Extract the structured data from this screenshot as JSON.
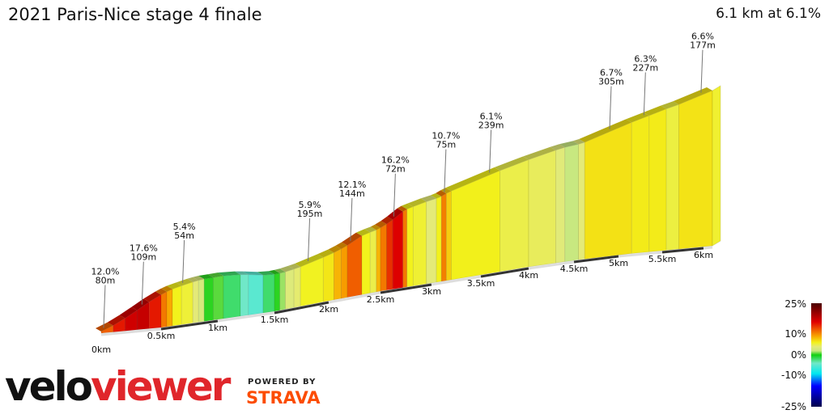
{
  "title": "2021 Paris-Nice stage 4 finale",
  "summary": "6.1 km at 6.1%",
  "chart_data": {
    "type": "area",
    "title": "2021 Paris-Nice stage 4 finale",
    "xlabel": "",
    "ylabel": "",
    "x_unit": "km",
    "xlim": [
      0,
      6.1
    ],
    "x_ticks": [
      "0km",
      "0.5km",
      "1km",
      "1.5km",
      "2km",
      "2.5km",
      "3km",
      "3.5km",
      "4km",
      "4.5km",
      "5km",
      "5.5km",
      "6km"
    ],
    "segments": [
      {
        "from": 0,
        "to": 0.1,
        "grade": 12
      },
      {
        "from": 0.1,
        "to": 0.2,
        "grade": 15
      },
      {
        "from": 0.2,
        "to": 0.3,
        "grade": 17
      },
      {
        "from": 0.3,
        "to": 0.4,
        "grade": 17.6
      },
      {
        "from": 0.4,
        "to": 0.5,
        "grade": 15
      },
      {
        "from": 0.5,
        "to": 0.55,
        "grade": 11
      },
      {
        "from": 0.55,
        "to": 0.6,
        "grade": 9
      },
      {
        "from": 0.6,
        "to": 0.68,
        "grade": 6
      },
      {
        "from": 0.68,
        "to": 0.78,
        "grade": 5.4
      },
      {
        "from": 0.78,
        "to": 0.83,
        "grade": 4
      },
      {
        "from": 0.83,
        "to": 0.88,
        "grade": 3
      },
      {
        "from": 0.88,
        "to": 0.96,
        "grade": 0.3
      },
      {
        "from": 0.96,
        "to": 1.05,
        "grade": 0.8
      },
      {
        "from": 1.05,
        "to": 1.2,
        "grade": -2
      },
      {
        "from": 1.2,
        "to": 1.27,
        "grade": -4
      },
      {
        "from": 1.27,
        "to": 1.4,
        "grade": -5
      },
      {
        "from": 1.4,
        "to": 1.5,
        "grade": -2
      },
      {
        "from": 1.5,
        "to": 1.55,
        "grade": 0.3
      },
      {
        "from": 1.55,
        "to": 1.6,
        "grade": 1.5
      },
      {
        "from": 1.6,
        "to": 1.68,
        "grade": 3.5
      },
      {
        "from": 1.68,
        "to": 1.74,
        "grade": 4.2
      },
      {
        "from": 1.74,
        "to": 1.95,
        "grade": 5.9
      },
      {
        "from": 1.95,
        "to": 2.05,
        "grade": 6.5
      },
      {
        "from": 2.05,
        "to": 2.12,
        "grade": 8.5
      },
      {
        "from": 2.12,
        "to": 2.18,
        "grade": 9.5
      },
      {
        "from": 2.18,
        "to": 2.32,
        "grade": 12.1
      },
      {
        "from": 2.32,
        "to": 2.4,
        "grade": 6
      },
      {
        "from": 2.4,
        "to": 2.46,
        "grade": 5
      },
      {
        "from": 2.46,
        "to": 2.5,
        "grade": 8.5
      },
      {
        "from": 2.5,
        "to": 2.56,
        "grade": 11
      },
      {
        "from": 2.56,
        "to": 2.62,
        "grade": 14
      },
      {
        "from": 2.62,
        "to": 2.72,
        "grade": 16.2
      },
      {
        "from": 2.72,
        "to": 2.76,
        "grade": 11
      },
      {
        "from": 2.76,
        "to": 2.82,
        "grade": 6
      },
      {
        "from": 2.82,
        "to": 2.95,
        "grade": 5.5
      },
      {
        "from": 2.95,
        "to": 3.05,
        "grade": 4
      },
      {
        "from": 3.05,
        "to": 3.1,
        "grade": 6
      },
      {
        "from": 3.1,
        "to": 3.15,
        "grade": 10.7
      },
      {
        "from": 3.15,
        "to": 3.2,
        "grade": 7.5
      },
      {
        "from": 3.2,
        "to": 3.7,
        "grade": 6.1
      },
      {
        "from": 3.7,
        "to": 4.0,
        "grade": 5
      },
      {
        "from": 4.0,
        "to": 4.3,
        "grade": 4.6
      },
      {
        "from": 4.3,
        "to": 4.4,
        "grade": 3.8
      },
      {
        "from": 4.4,
        "to": 4.55,
        "grade": 2
      },
      {
        "from": 4.55,
        "to": 4.62,
        "grade": 4
      },
      {
        "from": 4.62,
        "to": 5.15,
        "grade": 6.7
      },
      {
        "from": 5.15,
        "to": 5.35,
        "grade": 6.3
      },
      {
        "from": 5.35,
        "to": 5.55,
        "grade": 6.3
      },
      {
        "from": 5.55,
        "to": 5.7,
        "grade": 5.2
      },
      {
        "from": 5.7,
        "to": 6.1,
        "grade": 6.6
      }
    ],
    "annotations": [
      {
        "km": 0.02,
        "grade": "12.0%",
        "length": "80m"
      },
      {
        "km": 0.34,
        "grade": "17.6%",
        "length": "109m"
      },
      {
        "km": 0.69,
        "grade": "5.4%",
        "length": "54m"
      },
      {
        "km": 1.81,
        "grade": "5.9%",
        "length": "195m"
      },
      {
        "km": 2.21,
        "grade": "12.1%",
        "length": "144m"
      },
      {
        "km": 2.63,
        "grade": "16.2%",
        "length": "72m"
      },
      {
        "km": 3.13,
        "grade": "10.7%",
        "length": "75m"
      },
      {
        "km": 3.59,
        "grade": "6.1%",
        "length": "239m"
      },
      {
        "km": 4.9,
        "grade": "6.7%",
        "length": "305m"
      },
      {
        "km": 5.29,
        "grade": "6.3%",
        "length": "227m"
      },
      {
        "km": 5.97,
        "grade": "6.6%",
        "length": "177m"
      }
    ],
    "legend": {
      "labels": [
        "25%",
        "10%",
        "0%",
        "-10%",
        "-25%"
      ],
      "colors": [
        {
          "grade": -25,
          "color": "#00004a"
        },
        {
          "grade": -15,
          "color": "#0000ff"
        },
        {
          "grade": -9,
          "color": "#00e8f0"
        },
        {
          "grade": -4,
          "color": "#70e8c8"
        },
        {
          "grade": 0,
          "color": "#10d010"
        },
        {
          "grade": 2,
          "color": "#c8e880"
        },
        {
          "grade": 4,
          "color": "#e4ea78"
        },
        {
          "grade": 6,
          "color": "#f2f21c"
        },
        {
          "grade": 9,
          "color": "#f8a800"
        },
        {
          "grade": 12,
          "color": "#f06000"
        },
        {
          "grade": 16,
          "color": "#e00000"
        },
        {
          "grade": 25,
          "color": "#4a0000"
        }
      ]
    }
  },
  "branding": {
    "logo_part1": "velo",
    "logo_part2": "viewer",
    "powered_by": "POWERED BY",
    "strava": "STRAVA"
  }
}
